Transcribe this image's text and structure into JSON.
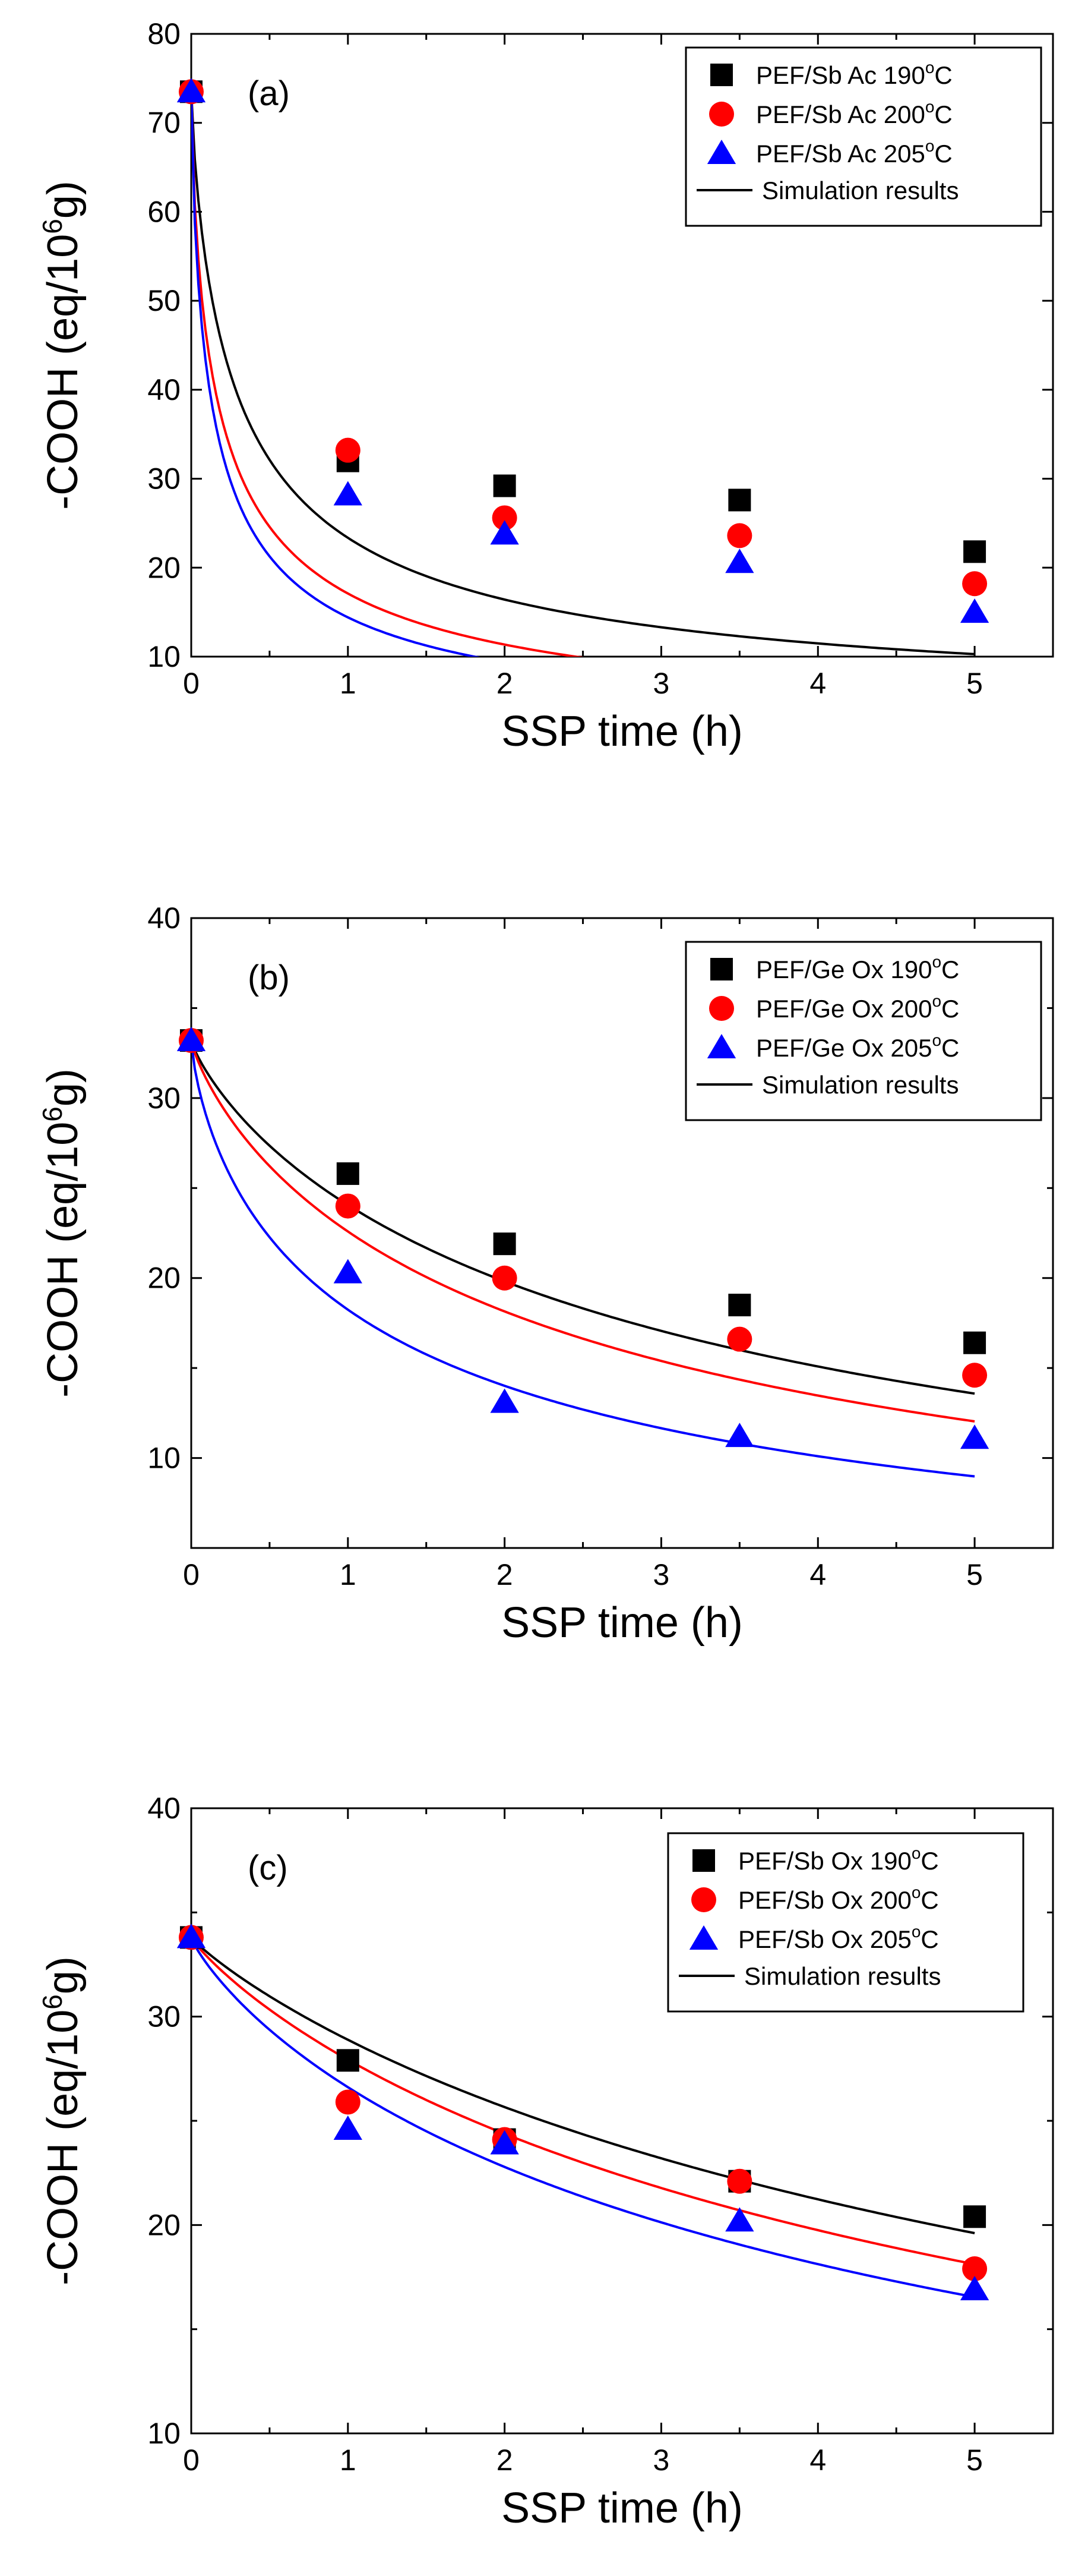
{
  "figure": {
    "panel_count": 3
  },
  "chart_data": [
    {
      "type": "scatter",
      "panel_label": "(a)",
      "title": "",
      "xlabel": "SSP time (h)",
      "ylabel": "-COOH (eq/10^6 g)",
      "ylabel_parts": {
        "pre": "-COOH (eq/10",
        "sup": "6",
        "post": "g)"
      },
      "xlim": [
        0,
        5.5
      ],
      "ylim": [
        10,
        80
      ],
      "xticks": [
        0,
        1,
        2,
        3,
        4,
        5
      ],
      "yticks": [
        10,
        20,
        30,
        40,
        50,
        60,
        70,
        80
      ],
      "legend_position": "top-right",
      "series": [
        {
          "name": "PEF/Sb Ac 190°C",
          "label_pre": "PEF/Sb Ac 190",
          "label_sup": "o",
          "label_post": "C",
          "color": "#000000",
          "marker": "square",
          "x": [
            0,
            1,
            2,
            3.5,
            5
          ],
          "y": [
            73.5,
            32,
            29.2,
            27.6,
            21.8
          ],
          "fit": {
            "y0": 73.5,
            "yinf": 3.3,
            "k": 2.5,
            "n": 0.8
          }
        },
        {
          "name": "PEF/Sb Ac 200°C",
          "label_pre": "PEF/Sb Ac 200",
          "label_sup": "o",
          "label_post": "C",
          "color": "#ff0000",
          "marker": "circle",
          "x": [
            0,
            1,
            2,
            3.5,
            5
          ],
          "y": [
            73.5,
            33.2,
            25.6,
            23.6,
            18.2
          ],
          "fit": {
            "y0": 73.5,
            "yinf": 0,
            "k": 3.3,
            "n": 0.73
          }
        },
        {
          "name": "PEF/Sb Ac 205°C",
          "label_pre": "PEF/Sb Ac 205",
          "label_sup": "o",
          "label_post": "C",
          "color": "#0000ff",
          "marker": "triangle",
          "x": [
            0,
            1,
            2,
            3.5,
            5
          ],
          "y": [
            73.5,
            28.2,
            23.8,
            20.6,
            15.0
          ],
          "fit": {
            "y0": 73.5,
            "yinf": 0,
            "k": 4.1,
            "n": 0.74
          }
        }
      ],
      "simulation_label": "Simulation results"
    },
    {
      "type": "scatter",
      "panel_label": "(b)",
      "title": "",
      "xlabel": "SSP time (h)",
      "ylabel": "-COOH (eq/10^6 g)",
      "ylabel_parts": {
        "pre": "-COOH (eq/10",
        "sup": "6",
        "post": "g)"
      },
      "xlim": [
        0,
        5.5
      ],
      "ylim": [
        5,
        40
      ],
      "xticks": [
        0,
        0.5,
        1,
        1.5,
        2,
        2.5,
        3,
        3.5,
        4,
        4.5,
        5
      ],
      "xtick_labels": [
        "0",
        "",
        "1",
        "",
        "2",
        "",
        "3",
        "",
        "4",
        "",
        "5"
      ],
      "yticks": [
        10,
        20,
        30,
        40
      ],
      "ytick_minor": [
        5,
        15,
        25,
        35
      ],
      "legend_position": "top-right",
      "series": [
        {
          "name": "PEF/Ge Ox 190°C",
          "label_pre": "PEF/Ge Ox 190",
          "label_sup": "o",
          "label_post": "C",
          "color": "#000000",
          "marker": "square",
          "x": [
            0,
            1,
            2,
            3.5,
            5
          ],
          "y": [
            33.2,
            25.8,
            21.9,
            18.5,
            16.4
          ],
          "fit": {
            "y0": 33.2,
            "yinf": 0,
            "k": 0.38,
            "n": 0.83
          }
        },
        {
          "name": "PEF/Ge Ox 200°C",
          "label_pre": "PEF/Ge Ox 200",
          "label_sup": "o",
          "label_post": "C",
          "color": "#ff0000",
          "marker": "circle",
          "x": [
            0,
            1,
            2,
            3.5,
            5
          ],
          "y": [
            33.2,
            24.0,
            20.0,
            16.6,
            14.6
          ],
          "fit": {
            "y0": 33.2,
            "yinf": 0,
            "k": 0.47,
            "n": 0.82
          }
        },
        {
          "name": "PEF/Ge Ox 205°C",
          "label_pre": "PEF/Ge Ox 205",
          "label_sup": "o",
          "label_post": "C",
          "color": "#0000ff",
          "marker": "triangle",
          "x": [
            0,
            1,
            2,
            3.5,
            5
          ],
          "y": [
            33.2,
            20.3,
            13.1,
            11.2,
            11.1
          ],
          "fit": {
            "y0": 33.2,
            "yinf": 0,
            "k": 0.82,
            "n": 0.74
          }
        }
      ],
      "simulation_label": "Simulation results"
    },
    {
      "type": "scatter",
      "panel_label": "(c)",
      "title": "",
      "xlabel": "SSP time (h)",
      "ylabel": "-COOH (eq/10^6 g)",
      "ylabel_parts": {
        "pre": "-COOH (eq/10",
        "sup": "6",
        "post": "g)"
      },
      "xlim": [
        0,
        5.5
      ],
      "ylim": [
        10,
        40
      ],
      "xticks": [
        0,
        0.5,
        1,
        1.5,
        2,
        2.5,
        3,
        3.5,
        4,
        4.5,
        5
      ],
      "xtick_labels": [
        "0",
        "",
        "1",
        "",
        "2",
        "",
        "3",
        "",
        "4",
        "",
        "5"
      ],
      "yticks": [
        10,
        20,
        30,
        40
      ],
      "ytick_minor": [
        15,
        25,
        35
      ],
      "legend_position": "top-right",
      "series": [
        {
          "name": "PEF/Sb Ox 190°C",
          "label_pre": "PEF/Sb Ox 190",
          "label_sup": "o",
          "label_post": "C",
          "color": "#000000",
          "marker": "square",
          "x": [
            0,
            1,
            2,
            3.5,
            5
          ],
          "y": [
            33.8,
            27.9,
            24.1,
            22.1,
            20.4
          ],
          "fit": {
            "y0": 33.8,
            "yinf": 0,
            "k": 0.17,
            "n": 0.9
          }
        },
        {
          "name": "PEF/Sb Ox 200°C",
          "label_pre": "PEF/Sb Ox 200",
          "label_sup": "o",
          "label_post": "C",
          "color": "#ff0000",
          "marker": "circle",
          "x": [
            0,
            1,
            2,
            3.5,
            5
          ],
          "y": [
            33.8,
            25.9,
            24.1,
            22.1,
            17.9
          ],
          "fit": {
            "y0": 33.8,
            "yinf": 0,
            "k": 0.21,
            "n": 0.88
          }
        },
        {
          "name": "PEF/Sb Ox 205°C",
          "label_pre": "PEF/Sb Ox 205",
          "label_sup": "o",
          "label_post": "C",
          "color": "#0000ff",
          "marker": "triangle",
          "x": [
            0,
            1,
            2,
            3.5,
            5
          ],
          "y": [
            33.8,
            24.6,
            23.9,
            20.2,
            16.9
          ],
          "fit": {
            "y0": 33.8,
            "yinf": 0,
            "k": 0.27,
            "n": 0.84
          }
        }
      ],
      "simulation_label": "Simulation results"
    }
  ]
}
